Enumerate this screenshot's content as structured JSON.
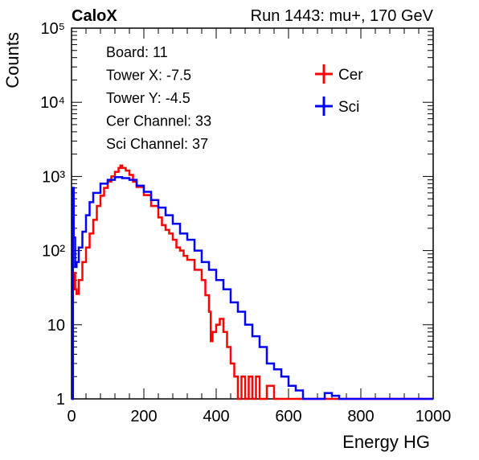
{
  "header": {
    "experiment": "CaloX",
    "run_info": "Run 1443: mu+, 170 GeV"
  },
  "info_box": [
    "Board: 11",
    "Tower X: -7.5",
    "Tower Y: -4.5",
    "Cer Channel: 33",
    "Sci Channel: 37"
  ],
  "chart_data": {
    "type": "line",
    "xlabel": "Energy HG",
    "ylabel": "Counts",
    "xlim": [
      0,
      1000
    ],
    "ylim": [
      1,
      100000
    ],
    "y_scale": "log",
    "grid": false,
    "legend_position": "top-right",
    "x_ticks": [
      0,
      200,
      400,
      600,
      800,
      1000
    ],
    "x_tick_labels": [
      "0",
      "200",
      "400",
      "600",
      "800",
      "1000"
    ],
    "y_ticks": [
      1,
      10,
      100,
      1000,
      10000,
      100000
    ],
    "y_tick_labels": [
      "1",
      "10",
      "10²",
      "10³",
      "10⁴",
      "10⁵"
    ],
    "series": [
      {
        "name": "Cer",
        "color": "#ff0000",
        "points": [
          [
            0,
            1
          ],
          [
            2,
            1
          ],
          [
            4,
            30
          ],
          [
            6,
            50
          ],
          [
            10,
            30
          ],
          [
            14,
            26
          ],
          [
            20,
            40
          ],
          [
            30,
            70
          ],
          [
            40,
            110
          ],
          [
            50,
            170
          ],
          [
            60,
            260
          ],
          [
            70,
            400
          ],
          [
            80,
            550
          ],
          [
            90,
            700
          ],
          [
            100,
            850
          ],
          [
            110,
            1000
          ],
          [
            120,
            1150
          ],
          [
            130,
            1300
          ],
          [
            135,
            1400
          ],
          [
            140,
            1300
          ],
          [
            150,
            1200
          ],
          [
            160,
            1050
          ],
          [
            170,
            850
          ],
          [
            180,
            720
          ],
          [
            200,
            560
          ],
          [
            220,
            400
          ],
          [
            240,
            280
          ],
          [
            250,
            220
          ],
          [
            260,
            190
          ],
          [
            270,
            170
          ],
          [
            280,
            140
          ],
          [
            290,
            110
          ],
          [
            300,
            100
          ],
          [
            310,
            85
          ],
          [
            320,
            75
          ],
          [
            340,
            55
          ],
          [
            360,
            40
          ],
          [
            370,
            25
          ],
          [
            380,
            15
          ],
          [
            385,
            6
          ],
          [
            390,
            8
          ],
          [
            400,
            10
          ],
          [
            410,
            12
          ],
          [
            420,
            8
          ],
          [
            430,
            5
          ],
          [
            440,
            3
          ],
          [
            450,
            2
          ],
          [
            460,
            1
          ],
          [
            470,
            2
          ],
          [
            480,
            1
          ],
          [
            490,
            2
          ],
          [
            500,
            1
          ],
          [
            510,
            2
          ],
          [
            520,
            1
          ],
          [
            540,
            1.5
          ],
          [
            560,
            1
          ],
          [
            1000,
            1
          ]
        ]
      },
      {
        "name": "Sci",
        "color": "#0000ff",
        "points": [
          [
            0,
            1
          ],
          [
            2,
            1
          ],
          [
            4,
            700
          ],
          [
            6,
            150
          ],
          [
            10,
            60
          ],
          [
            14,
            70
          ],
          [
            20,
            110
          ],
          [
            30,
            180
          ],
          [
            40,
            300
          ],
          [
            50,
            450
          ],
          [
            60,
            600
          ],
          [
            80,
            800
          ],
          [
            100,
            900
          ],
          [
            120,
            980
          ],
          [
            140,
            950
          ],
          [
            160,
            900
          ],
          [
            180,
            750
          ],
          [
            200,
            620
          ],
          [
            220,
            480
          ],
          [
            240,
            380
          ],
          [
            260,
            300
          ],
          [
            280,
            230
          ],
          [
            300,
            170
          ],
          [
            320,
            140
          ],
          [
            340,
            100
          ],
          [
            360,
            70
          ],
          [
            380,
            55
          ],
          [
            400,
            40
          ],
          [
            420,
            30
          ],
          [
            440,
            20
          ],
          [
            460,
            15
          ],
          [
            480,
            10
          ],
          [
            500,
            7
          ],
          [
            520,
            5
          ],
          [
            540,
            3
          ],
          [
            560,
            2.5
          ],
          [
            580,
            2
          ],
          [
            600,
            1.5
          ],
          [
            620,
            1.3
          ],
          [
            640,
            1
          ],
          [
            700,
            1.2
          ],
          [
            720,
            1.1
          ],
          [
            740,
            1
          ],
          [
            1000,
            1
          ]
        ]
      }
    ]
  }
}
